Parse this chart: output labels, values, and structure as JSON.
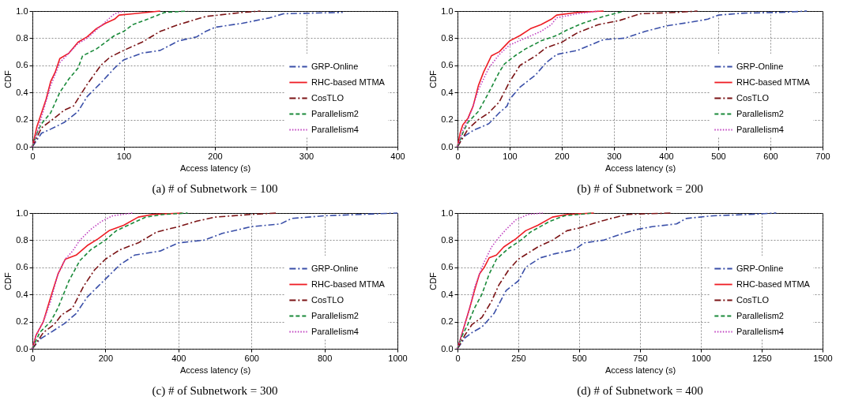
{
  "chart_data": [
    {
      "type": "line",
      "title": "(a) # of Subnetwork = 100",
      "xlabel": "Access latency (s)",
      "ylabel": "CDF",
      "xlim": [
        0,
        400
      ],
      "xticks": [
        0,
        100,
        200,
        300,
        400
      ],
      "ylim": [
        0,
        1
      ],
      "yticks": [
        {
          "value": 0,
          "label": "0.0"
        },
        {
          "value": 0.2,
          "label": "0.2"
        },
        {
          "value": 0.4,
          "label": "0.4"
        },
        {
          "value": 0.6,
          "label": "0.6"
        },
        {
          "value": 0.8,
          "label": "0.8"
        },
        {
          "value": 1,
          "label": "1.0"
        }
      ],
      "grid": true,
      "legend": "bottom right",
      "series": [
        {
          "name": "GRP-Online",
          "color": "#3a4fa8",
          "line_style": "dashdot",
          "x": [
            0,
            10,
            20,
            35,
            50,
            60,
            75,
            90,
            100,
            120,
            140,
            160,
            180,
            190,
            200,
            230,
            260,
            275,
            340
          ],
          "values": [
            0,
            0.1,
            0.13,
            0.18,
            0.26,
            0.37,
            0.47,
            0.58,
            0.64,
            0.69,
            0.71,
            0.78,
            0.81,
            0.85,
            0.88,
            0.91,
            0.95,
            0.98,
            0.99
          ]
        },
        {
          "name": "RHC-based MTMA",
          "color": "#ee1c24",
          "line_style": "solid",
          "x": [
            0,
            5,
            10,
            15,
            20,
            25,
            30,
            40,
            50,
            60,
            70,
            80,
            90,
            95,
            110,
            140
          ],
          "values": [
            0,
            0.15,
            0.25,
            0.35,
            0.48,
            0.55,
            0.65,
            0.69,
            0.77,
            0.81,
            0.87,
            0.91,
            0.94,
            0.97,
            0.98,
            1
          ]
        },
        {
          "name": "CosTLO",
          "color": "#7b1416",
          "line_style": "dashdot",
          "x": [
            0,
            10,
            20,
            35,
            45,
            60,
            75,
            85,
            100,
            120,
            140,
            160,
            190,
            230,
            250
          ],
          "values": [
            0,
            0.14,
            0.19,
            0.27,
            0.3,
            0.46,
            0.6,
            0.66,
            0.71,
            0.77,
            0.85,
            0.9,
            0.96,
            0.99,
            1
          ]
        },
        {
          "name": "Parallelism2",
          "color": "#1a8a3a",
          "line_style": "dashed",
          "x": [
            0,
            5,
            10,
            20,
            30,
            40,
            50,
            55,
            70,
            90,
            100,
            110,
            130,
            145,
            170
          ],
          "values": [
            0,
            0.1,
            0.17,
            0.25,
            0.4,
            0.5,
            0.58,
            0.67,
            0.72,
            0.82,
            0.85,
            0.9,
            0.95,
            0.99,
            1
          ]
        },
        {
          "name": "Parallelism4",
          "color": "#c040c0",
          "line_style": "dotted",
          "x": [
            0,
            5,
            10,
            20,
            30,
            40,
            50,
            60,
            70,
            80,
            90,
            100
          ],
          "values": [
            0,
            0.1,
            0.22,
            0.45,
            0.62,
            0.69,
            0.76,
            0.8,
            0.86,
            0.92,
            0.98,
            1
          ]
        }
      ]
    },
    {
      "type": "line",
      "title": "(b) # of Subnetwork = 200",
      "xlabel": "Access latency (s)",
      "ylabel": "CDF",
      "xlim": [
        0,
        700
      ],
      "xticks": [
        0,
        100,
        200,
        300,
        400,
        500,
        600,
        700
      ],
      "ylim": [
        0,
        1
      ],
      "yticks": [
        {
          "value": 0,
          "label": "0.0"
        },
        {
          "value": 0.2,
          "label": "0.2"
        },
        {
          "value": 0.4,
          "label": "0.4"
        },
        {
          "value": 0.6,
          "label": "0.6"
        },
        {
          "value": 0.8,
          "label": "0.8"
        },
        {
          "value": 1,
          "label": "1.0"
        }
      ],
      "grid": true,
      "legend": "bottom right",
      "series": [
        {
          "name": "GRP-Online",
          "color": "#3a4fa8",
          "line_style": "dashdot",
          "x": [
            0,
            10,
            30,
            60,
            80,
            95,
            100,
            120,
            150,
            170,
            190,
            230,
            280,
            320,
            360,
            400,
            450,
            480,
            500,
            550,
            620,
            670
          ],
          "values": [
            0,
            0.07,
            0.12,
            0.17,
            0.25,
            0.3,
            0.35,
            0.44,
            0.53,
            0.62,
            0.68,
            0.71,
            0.79,
            0.8,
            0.85,
            0.89,
            0.92,
            0.94,
            0.97,
            0.985,
            0.99,
            1
          ]
        },
        {
          "name": "RHC-based MTMA",
          "color": "#ee1c24",
          "line_style": "solid",
          "x": [
            0,
            5,
            10,
            20,
            30,
            40,
            50,
            60,
            65,
            80,
            100,
            120,
            140,
            160,
            180,
            190,
            230,
            280
          ],
          "values": [
            0,
            0.1,
            0.16,
            0.21,
            0.3,
            0.45,
            0.55,
            0.63,
            0.67,
            0.7,
            0.78,
            0.82,
            0.87,
            0.9,
            0.94,
            0.97,
            0.99,
            1
          ]
        },
        {
          "name": "CosTLO",
          "color": "#7b1416",
          "line_style": "dashdot",
          "x": [
            0,
            20,
            40,
            60,
            80,
            100,
            120,
            150,
            170,
            200,
            230,
            270,
            310,
            350,
            420,
            460
          ],
          "values": [
            0,
            0.13,
            0.2,
            0.25,
            0.33,
            0.48,
            0.6,
            0.67,
            0.73,
            0.77,
            0.84,
            0.9,
            0.93,
            0.98,
            0.99,
            1
          ]
        },
        {
          "name": "Parallelism2",
          "color": "#1a8a3a",
          "line_style": "dashed",
          "x": [
            0,
            10,
            20,
            40,
            60,
            80,
            90,
            110,
            130,
            160,
            190,
            210,
            240,
            280,
            320
          ],
          "values": [
            0,
            0.1,
            0.18,
            0.26,
            0.4,
            0.55,
            0.61,
            0.67,
            0.72,
            0.78,
            0.82,
            0.86,
            0.91,
            0.96,
            1
          ]
        },
        {
          "name": "Parallelism4",
          "color": "#c040c0",
          "line_style": "dotted",
          "x": [
            0,
            10,
            20,
            30,
            40,
            60,
            80,
            100,
            130,
            160,
            180,
            190,
            230,
            270
          ],
          "values": [
            0,
            0.12,
            0.2,
            0.3,
            0.42,
            0.58,
            0.68,
            0.75,
            0.8,
            0.85,
            0.9,
            0.95,
            0.98,
            1
          ]
        }
      ]
    },
    {
      "type": "line",
      "title": "(c) # of Subnetwork = 300",
      "xlabel": "Access latency (s)",
      "ylabel": "CDF",
      "xlim": [
        0,
        1000
      ],
      "xticks": [
        0,
        200,
        400,
        600,
        800,
        1000
      ],
      "ylim": [
        0,
        1
      ],
      "yticks": [
        {
          "value": 0,
          "label": "0.0"
        },
        {
          "value": 0.2,
          "label": "0.2"
        },
        {
          "value": 0.4,
          "label": "0.4"
        },
        {
          "value": 0.6,
          "label": "0.6"
        },
        {
          "value": 0.8,
          "label": "0.8"
        },
        {
          "value": 1,
          "label": "1.0"
        }
      ],
      "grid": true,
      "legend": "bottom right",
      "series": [
        {
          "name": "GRP-Online",
          "color": "#3a4fa8",
          "line_style": "dashdot",
          "x": [
            0,
            20,
            50,
            90,
            120,
            150,
            180,
            210,
            240,
            280,
            350,
            400,
            470,
            520,
            600,
            680,
            710,
            800,
            900,
            1000
          ],
          "values": [
            0,
            0.07,
            0.12,
            0.19,
            0.26,
            0.38,
            0.46,
            0.54,
            0.62,
            0.69,
            0.72,
            0.78,
            0.8,
            0.85,
            0.9,
            0.92,
            0.96,
            0.98,
            0.99,
            1
          ]
        },
        {
          "name": "RHC-based MTMA",
          "color": "#ee1c24",
          "line_style": "solid",
          "x": [
            0,
            10,
            30,
            50,
            70,
            90,
            120,
            150,
            180,
            210,
            250,
            290,
            330,
            410
          ],
          "values": [
            0,
            0.1,
            0.2,
            0.38,
            0.55,
            0.66,
            0.69,
            0.76,
            0.81,
            0.87,
            0.91,
            0.97,
            0.99,
            1
          ]
        },
        {
          "name": "CosTLO",
          "color": "#7b1416",
          "line_style": "dashdot",
          "x": [
            0,
            30,
            60,
            80,
            110,
            140,
            170,
            200,
            240,
            290,
            340,
            400,
            450,
            500,
            600,
            670
          ],
          "values": [
            0,
            0.12,
            0.18,
            0.25,
            0.3,
            0.46,
            0.58,
            0.66,
            0.73,
            0.78,
            0.86,
            0.9,
            0.94,
            0.97,
            0.99,
            1
          ]
        },
        {
          "name": "Parallelism2",
          "color": "#1a8a3a",
          "line_style": "dashed",
          "x": [
            0,
            20,
            50,
            70,
            100,
            130,
            160,
            200,
            230,
            270,
            310,
            360,
            425
          ],
          "values": [
            0,
            0.12,
            0.2,
            0.3,
            0.5,
            0.65,
            0.73,
            0.8,
            0.87,
            0.92,
            0.97,
            0.99,
            1
          ]
        },
        {
          "name": "Parallelism4",
          "color": "#c040c0",
          "line_style": "dotted",
          "x": [
            0,
            10,
            30,
            50,
            70,
            90,
            110,
            130,
            160,
            190,
            220,
            275
          ],
          "values": [
            0,
            0.1,
            0.2,
            0.35,
            0.55,
            0.66,
            0.72,
            0.8,
            0.88,
            0.94,
            0.98,
            1
          ]
        }
      ]
    },
    {
      "type": "line",
      "title": "(d) # of Subnetwork = 400",
      "xlabel": "Access latency (s)",
      "ylabel": "CDF",
      "xlim": [
        0,
        1500
      ],
      "xticks": [
        0,
        250,
        500,
        750,
        1000,
        1250,
        1500
      ],
      "ylim": [
        0,
        1
      ],
      "yticks": [
        {
          "value": 0,
          "label": "0.0"
        },
        {
          "value": 0.2,
          "label": "0.2"
        },
        {
          "value": 0.4,
          "label": "0.4"
        },
        {
          "value": 0.6,
          "label": "0.6"
        },
        {
          "value": 0.8,
          "label": "0.8"
        },
        {
          "value": 1,
          "label": "1.0"
        }
      ],
      "grid": true,
      "legend": "bottom right",
      "series": [
        {
          "name": "GRP-Online",
          "color": "#3a4fa8",
          "line_style": "dashdot",
          "x": [
            0,
            30,
            60,
            100,
            150,
            200,
            250,
            280,
            340,
            400,
            480,
            520,
            600,
            680,
            740,
            800,
            900,
            940,
            1050,
            1200,
            1310
          ],
          "values": [
            0,
            0.08,
            0.12,
            0.16,
            0.26,
            0.43,
            0.5,
            0.6,
            0.67,
            0.7,
            0.73,
            0.78,
            0.8,
            0.85,
            0.88,
            0.9,
            0.92,
            0.96,
            0.98,
            0.99,
            1
          ]
        },
        {
          "name": "RHC-based MTMA",
          "color": "#ee1c24",
          "line_style": "solid",
          "x": [
            0,
            20,
            50,
            70,
            90,
            110,
            130,
            160,
            190,
            240,
            280,
            330,
            390,
            450,
            560
          ],
          "values": [
            0,
            0.12,
            0.3,
            0.43,
            0.55,
            0.6,
            0.67,
            0.69,
            0.75,
            0.81,
            0.87,
            0.91,
            0.97,
            0.99,
            1
          ]
        },
        {
          "name": "CosTLO",
          "color": "#7b1416",
          "line_style": "dashdot",
          "x": [
            0,
            30,
            60,
            100,
            140,
            170,
            210,
            250,
            330,
            390,
            450,
            500,
            570,
            630,
            700,
            880
          ],
          "values": [
            0,
            0.1,
            0.18,
            0.23,
            0.35,
            0.47,
            0.58,
            0.66,
            0.75,
            0.8,
            0.87,
            0.89,
            0.93,
            0.96,
            0.99,
            1
          ]
        },
        {
          "name": "Parallelism2",
          "color": "#1a8a3a",
          "line_style": "dashed",
          "x": [
            0,
            20,
            40,
            70,
            100,
            130,
            160,
            210,
            260,
            300,
            380,
            440,
            500,
            560
          ],
          "values": [
            0,
            0.1,
            0.17,
            0.3,
            0.4,
            0.55,
            0.66,
            0.74,
            0.8,
            0.86,
            0.94,
            0.98,
            0.99,
            1
          ]
        },
        {
          "name": "Parallelism4",
          "color": "#c040c0",
          "line_style": "dotted",
          "x": [
            0,
            20,
            50,
            70,
            90,
            110,
            140,
            170,
            200,
            240,
            290,
            350
          ],
          "values": [
            0,
            0.12,
            0.3,
            0.45,
            0.55,
            0.64,
            0.75,
            0.82,
            0.88,
            0.95,
            0.99,
            1
          ]
        }
      ]
    }
  ]
}
